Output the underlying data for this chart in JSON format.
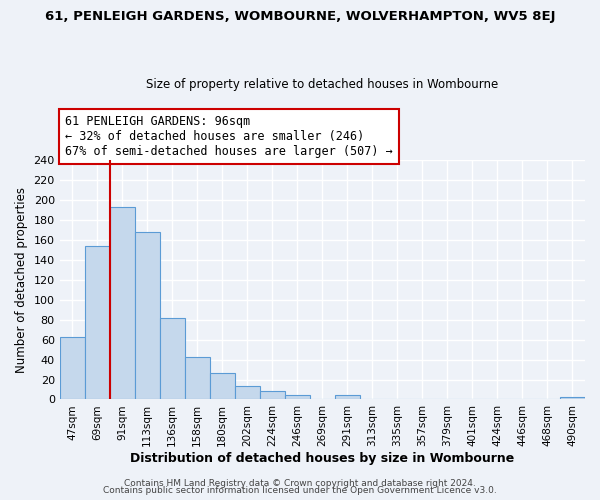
{
  "title": "61, PENLEIGH GARDENS, WOMBOURNE, WOLVERHAMPTON, WV5 8EJ",
  "subtitle": "Size of property relative to detached houses in Wombourne",
  "xlabel": "Distribution of detached houses by size in Wombourne",
  "ylabel": "Number of detached properties",
  "bar_color": "#c5d8ec",
  "bar_edge_color": "#5b9bd5",
  "background_color": "#eef2f8",
  "grid_color": "#ffffff",
  "categories": [
    "47sqm",
    "69sqm",
    "91sqm",
    "113sqm",
    "136sqm",
    "158sqm",
    "180sqm",
    "202sqm",
    "224sqm",
    "246sqm",
    "269sqm",
    "291sqm",
    "313sqm",
    "335sqm",
    "357sqm",
    "379sqm",
    "401sqm",
    "424sqm",
    "446sqm",
    "468sqm",
    "490sqm"
  ],
  "values": [
    63,
    154,
    193,
    168,
    82,
    43,
    27,
    13,
    8,
    4,
    0,
    4,
    0,
    0,
    0,
    0,
    0,
    0,
    0,
    0,
    2
  ],
  "ylim": [
    0,
    240
  ],
  "yticks": [
    0,
    20,
    40,
    60,
    80,
    100,
    120,
    140,
    160,
    180,
    200,
    220,
    240
  ],
  "property_line_bar_index": 2,
  "property_line_color": "#cc0000",
  "annotation_text": "61 PENLEIGH GARDENS: 96sqm\n← 32% of detached houses are smaller (246)\n67% of semi-detached houses are larger (507) →",
  "annotation_box_color": "#ffffff",
  "annotation_box_edge": "#cc0000",
  "footer1": "Contains HM Land Registry data © Crown copyright and database right 2024.",
  "footer2": "Contains public sector information licensed under the Open Government Licence v3.0."
}
